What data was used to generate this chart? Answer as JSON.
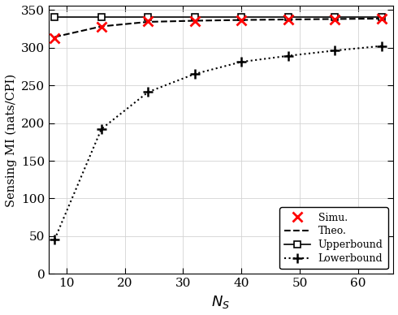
{
  "x_simu": [
    8,
    16,
    24,
    32,
    40,
    48,
    56,
    64
  ],
  "y_simu": [
    312,
    327,
    335,
    335.5,
    336,
    337,
    337.5,
    338
  ],
  "x_theo": [
    8,
    16,
    24,
    32,
    40,
    48,
    56,
    64
  ],
  "y_theo": [
    314,
    328,
    334,
    335.5,
    336.5,
    337.2,
    337.8,
    338.3
  ],
  "x_upper": [
    8,
    16,
    24,
    32,
    40,
    48,
    56,
    64
  ],
  "y_upper": [
    340,
    340,
    340,
    340,
    340,
    340,
    340,
    340
  ],
  "x_lower": [
    8,
    16,
    24,
    32,
    40,
    48,
    56,
    64
  ],
  "y_lower": [
    46,
    192,
    241,
    265,
    281,
    289,
    296,
    302
  ],
  "xlabel": "N_S",
  "ylabel": "Sensing MI (nats/CPI)",
  "xlim": [
    7,
    66
  ],
  "ylim": [
    0,
    355
  ],
  "xticks": [
    10,
    20,
    30,
    40,
    50,
    60
  ],
  "yticks": [
    0,
    50,
    100,
    150,
    200,
    250,
    300,
    350
  ],
  "legend_labels": [
    "Simu.",
    "Theo.",
    "Upperbound",
    "Lowerbound"
  ],
  "color_simu": "#ff0000",
  "color_theo": "#000000",
  "color_upper": "#000000",
  "color_lower": "#000000",
  "grid_color": "#d3d3d3",
  "background_color": "#ffffff"
}
